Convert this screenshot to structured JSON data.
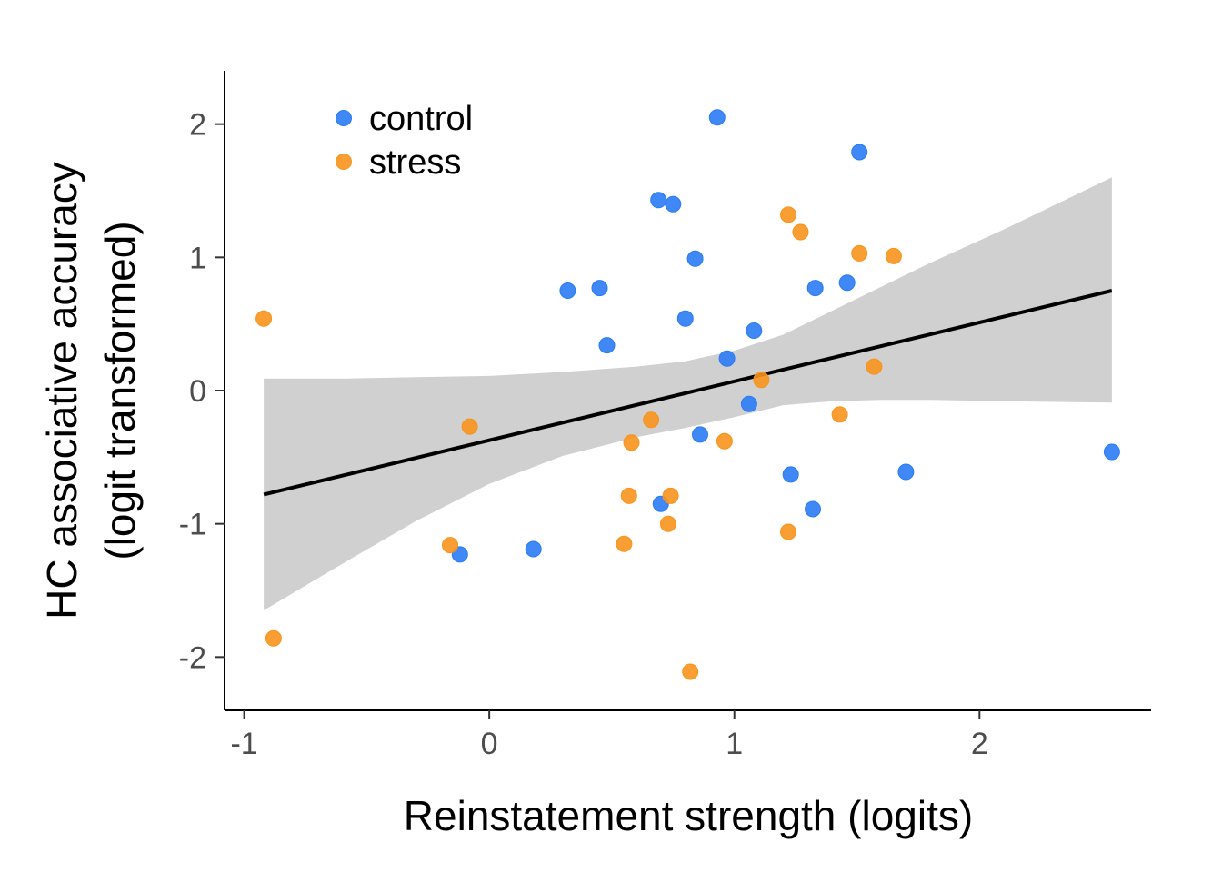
{
  "chart_data": {
    "type": "scatter",
    "xlabel": "Reinstatement strength (logits)",
    "ylabel": [
      "HC associative accuracy",
      "(logit transformed)"
    ],
    "xlim": [
      -1.08,
      2.7
    ],
    "ylim": [
      -2.4,
      2.4
    ],
    "xticks": [
      -1,
      0,
      1,
      2
    ],
    "xtick_labels": [
      "-1",
      "0",
      "1",
      "2"
    ],
    "yticks": [
      -2,
      -1,
      0,
      1,
      2
    ],
    "ytick_labels": [
      "-2",
      "-1",
      "0",
      "1",
      "2"
    ],
    "grid": false,
    "legend_position": "top-left",
    "series": [
      {
        "name": "control",
        "color": "#2b7bf4",
        "points": [
          [
            0.93,
            2.05
          ],
          [
            1.51,
            1.79
          ],
          [
            0.69,
            1.43
          ],
          [
            0.75,
            1.4
          ],
          [
            0.84,
            0.99
          ],
          [
            0.32,
            0.75
          ],
          [
            0.45,
            0.77
          ],
          [
            1.33,
            0.77
          ],
          [
            1.46,
            0.81
          ],
          [
            0.8,
            0.54
          ],
          [
            1.08,
            0.45
          ],
          [
            0.48,
            0.34
          ],
          [
            0.97,
            0.24
          ],
          [
            1.06,
            -0.1
          ],
          [
            0.86,
            -0.33
          ],
          [
            1.23,
            -0.63
          ],
          [
            1.7,
            -0.61
          ],
          [
            2.54,
            -0.46
          ],
          [
            0.7,
            -0.85
          ],
          [
            1.32,
            -0.89
          ],
          [
            0.18,
            -1.19
          ],
          [
            -0.12,
            -1.23
          ]
        ]
      },
      {
        "name": "stress",
        "color": "#f7941d",
        "points": [
          [
            -0.92,
            0.54
          ],
          [
            -0.88,
            -1.86
          ],
          [
            -0.08,
            -0.27
          ],
          [
            -0.16,
            -1.16
          ],
          [
            0.58,
            -0.39
          ],
          [
            0.66,
            -0.22
          ],
          [
            0.57,
            -0.79
          ],
          [
            0.74,
            -0.79
          ],
          [
            0.73,
            -1.0
          ],
          [
            0.55,
            -1.15
          ],
          [
            0.82,
            -2.11
          ],
          [
            0.96,
            -0.38
          ],
          [
            1.11,
            0.08
          ],
          [
            1.22,
            1.32
          ],
          [
            1.27,
            1.19
          ],
          [
            1.51,
            1.03
          ],
          [
            1.65,
            1.01
          ],
          [
            1.57,
            0.18
          ],
          [
            1.43,
            -0.18
          ],
          [
            1.22,
            -1.06
          ]
        ]
      }
    ],
    "fit": {
      "type": "linear",
      "color": "#000000",
      "band_color": "#d0d0d0",
      "x": [
        -0.92,
        -0.6,
        -0.3,
        0.0,
        0.3,
        0.6,
        0.8,
        1.0,
        1.2,
        1.4,
        1.6,
        1.8,
        2.1,
        2.54
      ],
      "y": [
        -0.78,
        -0.64,
        -0.51,
        -0.38,
        -0.25,
        -0.12,
        -0.03,
        0.06,
        0.15,
        0.23,
        0.32,
        0.41,
        0.54,
        0.75
      ],
      "lower": [
        -1.65,
        -1.3,
        -0.98,
        -0.7,
        -0.49,
        -0.35,
        -0.28,
        -0.2,
        -0.11,
        -0.08,
        -0.07,
        -0.07,
        -0.08,
        -0.09
      ],
      "upper": [
        0.09,
        0.09,
        0.1,
        0.11,
        0.14,
        0.18,
        0.22,
        0.3,
        0.42,
        0.6,
        0.78,
        0.96,
        1.21,
        1.6
      ]
    }
  }
}
